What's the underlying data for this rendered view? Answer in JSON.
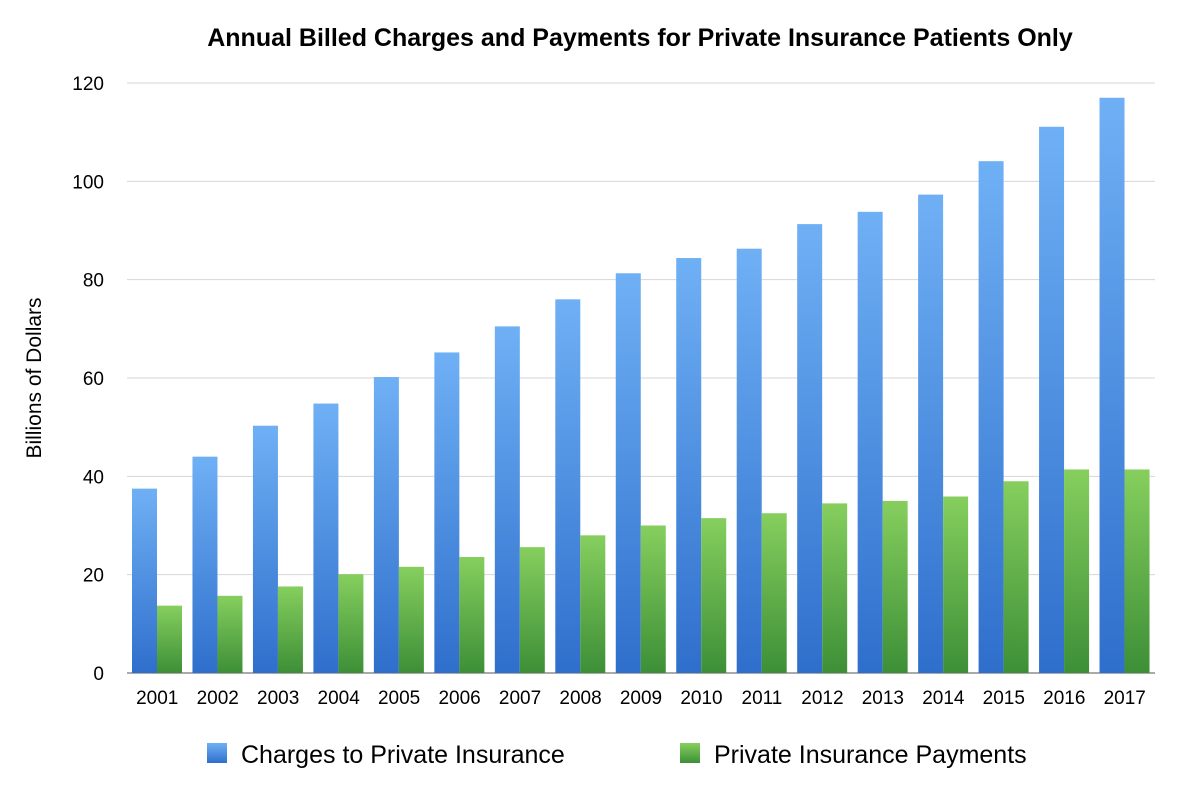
{
  "chart_data": {
    "type": "bar",
    "title": "Annual Billed Charges and Payments for Private Insurance Patients Only",
    "ylabel": "Billions of Dollars",
    "xlabel": "",
    "ylim": [
      0,
      120
    ],
    "yticks": [
      0,
      20,
      40,
      60,
      80,
      100,
      120
    ],
    "grid": true,
    "legend_position": "bottom",
    "categories": [
      "2001",
      "2002",
      "2003",
      "2004",
      "2005",
      "2006",
      "2007",
      "2008",
      "2009",
      "2010",
      "2011",
      "2012",
      "2013",
      "2014",
      "2015",
      "2016",
      "2017"
    ],
    "series": [
      {
        "name": "Charges to Private Insurance",
        "color": "#4a8fe0",
        "values": [
          37.5,
          44,
          50.3,
          54.8,
          60.2,
          65.2,
          70.5,
          76,
          81.3,
          84.4,
          86.3,
          91.3,
          93.8,
          97.3,
          104.1,
          111.1,
          117
        ]
      },
      {
        "name": "Private Insurance Payments",
        "color": "#5fad48",
        "values": [
          13.7,
          15.7,
          17.6,
          20.1,
          21.6,
          23.6,
          25.6,
          28,
          30,
          31.5,
          32.5,
          34.5,
          35,
          35.9,
          39,
          41.4,
          41.4
        ]
      }
    ]
  }
}
